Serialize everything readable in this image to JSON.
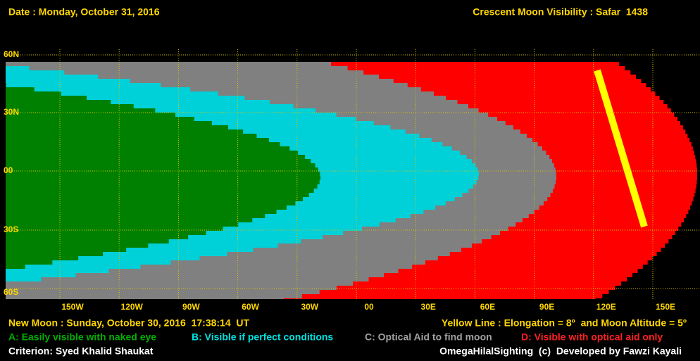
{
  "header": {
    "date": "Date : Monday, October 31, 2016",
    "title": "Crescent Moon Visibility : Safar  1438"
  },
  "map": {
    "lat_labels": [
      "60N",
      "30N",
      "00",
      "30S",
      "60S"
    ],
    "lon_labels": [
      "150W",
      "120W",
      "90W",
      "60W",
      "30W",
      "00",
      "30E",
      "60E",
      "90E",
      "120E",
      "150E"
    ]
  },
  "footer": {
    "new_moon": "New Moon : Sunday, October 30, 2016  17:38:14  UT",
    "yellow_line": "Yellow Line : Elongation = 8º  and Moon Altitude = 5º",
    "legend": [
      "A: Easily visible with naked eye",
      "B: Visible if perfect conditions",
      "C: Optical Aid to find moon",
      "D: Visible with optical aid only"
    ],
    "criterion": "Criterion: Syed Khalid Shaukat",
    "credit": "OmegaHilalSighting  (c)  Developed by Fawzi Kayali"
  }
}
